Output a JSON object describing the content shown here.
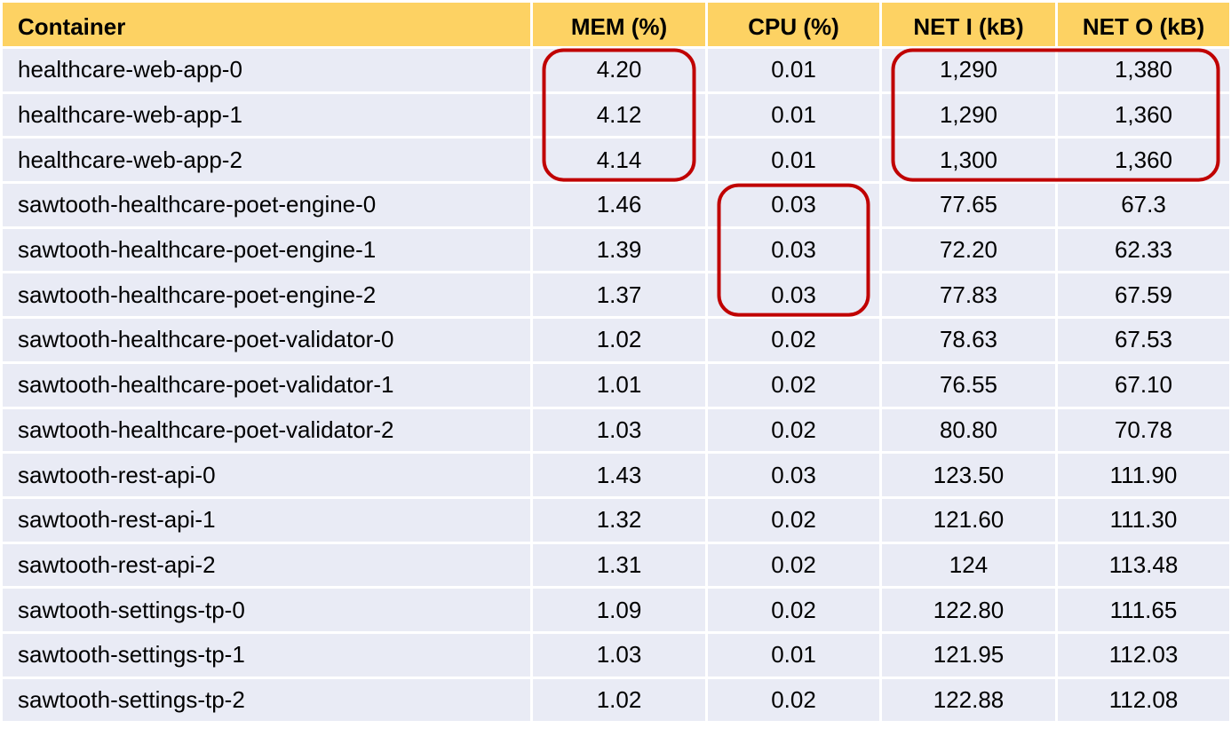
{
  "chart_data": {
    "type": "table",
    "columns": [
      "Container",
      "MEM (%)",
      "CPU (%)",
      "NET I (kB)",
      "NET O (kB)"
    ],
    "rows": [
      [
        "healthcare-web-app-0",
        "4.20",
        "0.01",
        "1,290",
        "1,380"
      ],
      [
        "healthcare-web-app-1",
        "4.12",
        "0.01",
        "1,290",
        "1,360"
      ],
      [
        "healthcare-web-app-2",
        "4.14",
        "0.01",
        "1,300",
        "1,360"
      ],
      [
        "sawtooth-healthcare-poet-engine-0",
        "1.46",
        "0.03",
        "77.65",
        "67.3"
      ],
      [
        "sawtooth-healthcare-poet-engine-1",
        "1.39",
        "0.03",
        "72.20",
        "62.33"
      ],
      [
        "sawtooth-healthcare-poet-engine-2",
        "1.37",
        "0.03",
        "77.83",
        "67.59"
      ],
      [
        "sawtooth-healthcare-poet-validator-0",
        "1.02",
        "0.02",
        "78.63",
        "67.53"
      ],
      [
        "sawtooth-healthcare-poet-validator-1",
        "1.01",
        "0.02",
        "76.55",
        "67.10"
      ],
      [
        "sawtooth-healthcare-poet-validator-2",
        "1.03",
        "0.02",
        "80.80",
        "70.78"
      ],
      [
        "sawtooth-rest-api-0",
        "1.43",
        "0.03",
        "123.50",
        "111.90"
      ],
      [
        "sawtooth-rest-api-1",
        "1.32",
        "0.02",
        "121.60",
        "111.30"
      ],
      [
        "sawtooth-rest-api-2",
        "1.31",
        "0.02",
        "124",
        "113.48"
      ],
      [
        "sawtooth-settings-tp-0",
        "1.09",
        "0.02",
        "122.80",
        "111.65"
      ],
      [
        "sawtooth-settings-tp-1",
        "1.03",
        "0.01",
        "121.95",
        "112.03"
      ],
      [
        "sawtooth-settings-tp-2",
        "1.02",
        "0.02",
        "122.88",
        "112.08"
      ]
    ],
    "highlights": [
      {
        "columns": [
          "MEM (%)"
        ],
        "rows": [
          0,
          1,
          2
        ]
      },
      {
        "columns": [
          "CPU (%)"
        ],
        "rows": [
          3,
          4,
          5
        ]
      },
      {
        "columns": [
          "NET I (kB)",
          "NET O (kB)"
        ],
        "rows": [
          0,
          1,
          2
        ]
      }
    ]
  },
  "colors": {
    "header_bg": "#fdd263",
    "row_bg": "#e9ebf5",
    "grid": "#ffffff",
    "highlight": "#c00000"
  }
}
